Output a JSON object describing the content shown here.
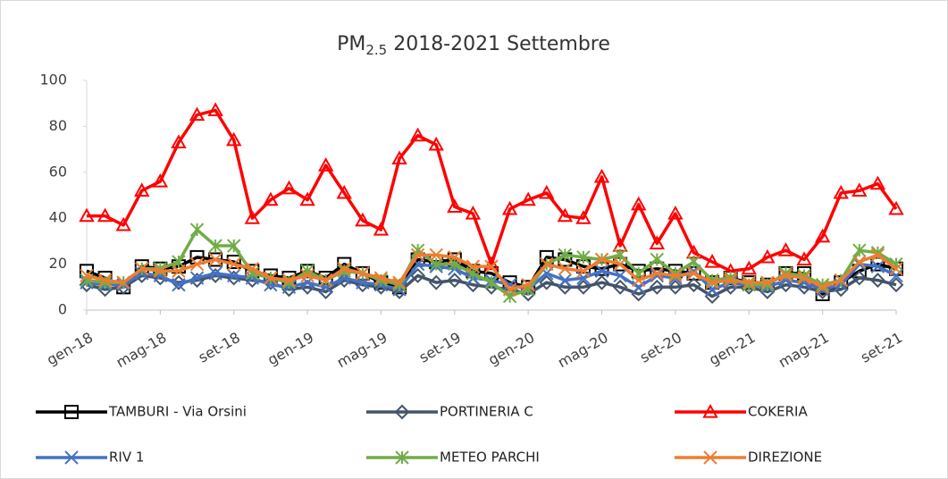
{
  "chart_data": {
    "type": "line",
    "title_parts": [
      "PM",
      "2.5",
      " 2018-2021 Settembre"
    ],
    "categories": [
      "gen-18",
      null,
      null,
      null,
      "mag-18",
      null,
      null,
      null,
      "set-18",
      null,
      null,
      null,
      "gen-19",
      null,
      null,
      null,
      "mag-19",
      null,
      null,
      null,
      "set-19",
      null,
      null,
      null,
      "gen-20",
      null,
      null,
      null,
      "mag-20",
      null,
      null,
      null,
      "set-20",
      null,
      null,
      null,
      "gen-21",
      null,
      null,
      null,
      "mag-21",
      null,
      null,
      null,
      "set-21"
    ],
    "ylim": [
      0,
      100
    ],
    "yticks": [
      0,
      20,
      40,
      60,
      80,
      100
    ],
    "grid": false,
    "series": [
      {
        "name": "TAMBURI - Via Orsini",
        "color": "#000000",
        "marker": "square",
        "values": [
          17,
          14,
          10,
          19,
          18,
          19,
          23,
          22,
          21,
          17,
          15,
          14,
          17,
          14,
          20,
          16,
          12,
          10,
          22,
          21,
          22,
          17,
          16,
          12,
          10,
          23,
          22,
          19,
          18,
          20,
          17,
          18,
          17,
          16,
          12,
          14,
          12,
          11,
          16,
          16,
          7,
          12,
          17,
          20,
          18
        ]
      },
      {
        "name": "PORTINERIA C",
        "color": "#44546a",
        "marker": "diamond",
        "values": [
          11,
          9,
          10,
          15,
          14,
          12,
          13,
          15,
          14,
          13,
          12,
          9,
          10,
          8,
          13,
          11,
          10,
          8,
          15,
          12,
          13,
          11,
          10,
          9,
          7,
          12,
          10,
          10,
          12,
          10,
          7,
          10,
          10,
          11,
          6,
          10,
          10,
          8,
          11,
          10,
          8,
          9,
          14,
          13,
          11
        ]
      },
      {
        "name": "COKERIA",
        "color": "#ff0000",
        "marker": "triangle",
        "values": [
          41,
          41,
          37,
          52,
          56,
          73,
          85,
          87,
          74,
          40,
          48,
          53,
          48,
          63,
          51,
          39,
          35,
          66,
          76,
          72,
          45,
          42,
          20,
          44,
          48,
          51,
          41,
          40,
          58,
          28,
          46,
          29,
          42,
          25,
          21,
          17,
          18,
          23,
          26,
          22,
          32,
          51,
          52,
          55,
          44
        ]
      },
      {
        "name": "RIV 1",
        "color": "#4472c4",
        "marker": "x",
        "values": [
          12,
          11,
          11,
          16,
          15,
          11,
          14,
          16,
          15,
          14,
          11,
          10,
          12,
          10,
          14,
          12,
          11,
          9,
          20,
          19,
          18,
          14,
          13,
          11,
          9,
          16,
          13,
          14,
          17,
          15,
          10,
          15,
          14,
          17,
          9,
          12,
          11,
          10,
          13,
          12,
          9,
          11,
          20,
          19,
          15
        ]
      },
      {
        "name": "METEO PARCHI",
        "color": "#70ad47",
        "marker": "star",
        "values": [
          13,
          12,
          12,
          18,
          18,
          21,
          35,
          28,
          28,
          16,
          14,
          12,
          17,
          13,
          17,
          16,
          13,
          11,
          26,
          20,
          20,
          16,
          12,
          6,
          9,
          20,
          24,
          23,
          22,
          24,
          16,
          22,
          16,
          21,
          13,
          14,
          11,
          11,
          16,
          15,
          11,
          13,
          26,
          25,
          20
        ]
      },
      {
        "name": "DIREZIONE",
        "color": "#ed7d31",
        "marker": "x",
        "values": [
          15,
          13,
          12,
          18,
          17,
          17,
          20,
          22,
          20,
          18,
          14,
          13,
          15,
          13,
          18,
          16,
          14,
          12,
          24,
          24,
          23,
          19,
          19,
          9,
          11,
          20,
          18,
          17,
          22,
          20,
          13,
          16,
          15,
          16,
          12,
          13,
          12,
          12,
          15,
          14,
          10,
          13,
          21,
          24,
          18
        ]
      }
    ]
  }
}
